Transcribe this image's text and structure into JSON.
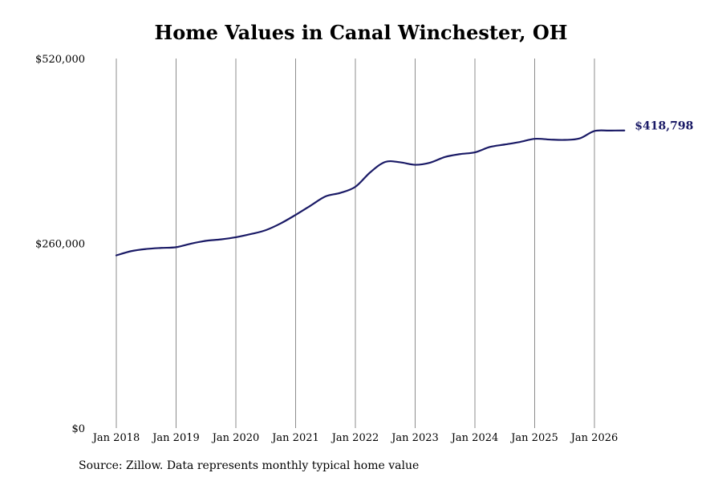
{
  "chart_data": {
    "type": "line",
    "title": "Home Values in Canal Winchester, OH",
    "xlabel": "",
    "ylabel": "",
    "ylim": [
      0,
      520000
    ],
    "xlim": [
      "2018-01",
      "2026-07"
    ],
    "y_ticks": [
      {
        "value": 0,
        "label": "$0"
      },
      {
        "value": 260000,
        "label": "$260,000"
      },
      {
        "value": 520000,
        "label": "$520,000"
      }
    ],
    "x_ticks": [
      {
        "value": "2018-01",
        "label": "Jan 2018"
      },
      {
        "value": "2019-01",
        "label": "Jan 2019"
      },
      {
        "value": "2020-01",
        "label": "Jan 2020"
      },
      {
        "value": "2021-01",
        "label": "Jan 2021"
      },
      {
        "value": "2022-01",
        "label": "Jan 2022"
      },
      {
        "value": "2023-01",
        "label": "Jan 2023"
      },
      {
        "value": "2024-01",
        "label": "Jan 2024"
      },
      {
        "value": "2025-01",
        "label": "Jan 2025"
      },
      {
        "value": "2026-01",
        "label": "Jan 2026"
      }
    ],
    "grid": {
      "vertical": true,
      "horizontal": false
    },
    "line_color": "#1a1a66",
    "series": [
      {
        "values": [
          {
            "x": "2018-01",
            "y": 243000
          },
          {
            "x": "2018-04",
            "y": 249000
          },
          {
            "x": "2018-07",
            "y": 252000
          },
          {
            "x": "2018-10",
            "y": 253500
          },
          {
            "x": "2019-01",
            "y": 254500
          },
          {
            "x": "2019-04",
            "y": 259500
          },
          {
            "x": "2019-07",
            "y": 263500
          },
          {
            "x": "2019-10",
            "y": 265500
          },
          {
            "x": "2020-01",
            "y": 268500
          },
          {
            "x": "2020-04",
            "y": 273000
          },
          {
            "x": "2020-07",
            "y": 278500
          },
          {
            "x": "2020-10",
            "y": 288000
          },
          {
            "x": "2021-01",
            "y": 300000
          },
          {
            "x": "2021-04",
            "y": 313000
          },
          {
            "x": "2021-07",
            "y": 326000
          },
          {
            "x": "2021-10",
            "y": 331000
          },
          {
            "x": "2022-01",
            "y": 339500
          },
          {
            "x": "2022-04",
            "y": 360000
          },
          {
            "x": "2022-07",
            "y": 374500
          },
          {
            "x": "2022-10",
            "y": 374000
          },
          {
            "x": "2023-01",
            "y": 370500
          },
          {
            "x": "2023-04",
            "y": 373500
          },
          {
            "x": "2023-07",
            "y": 381500
          },
          {
            "x": "2023-10",
            "y": 385500
          },
          {
            "x": "2024-01",
            "y": 388000
          },
          {
            "x": "2024-04",
            "y": 395500
          },
          {
            "x": "2024-07",
            "y": 399000
          },
          {
            "x": "2024-10",
            "y": 402500
          },
          {
            "x": "2025-01",
            "y": 407000
          },
          {
            "x": "2025-04",
            "y": 406000
          },
          {
            "x": "2025-07",
            "y": 405500
          },
          {
            "x": "2025-10",
            "y": 407500
          },
          {
            "x": "2026-01",
            "y": 418000
          },
          {
            "x": "2026-04",
            "y": 418600
          },
          {
            "x": "2026-07",
            "y": 418798
          }
        ]
      }
    ],
    "end_label": "$418,798"
  },
  "footer": {
    "source": "Source: Zillow. Data represents monthly typical home value"
  }
}
